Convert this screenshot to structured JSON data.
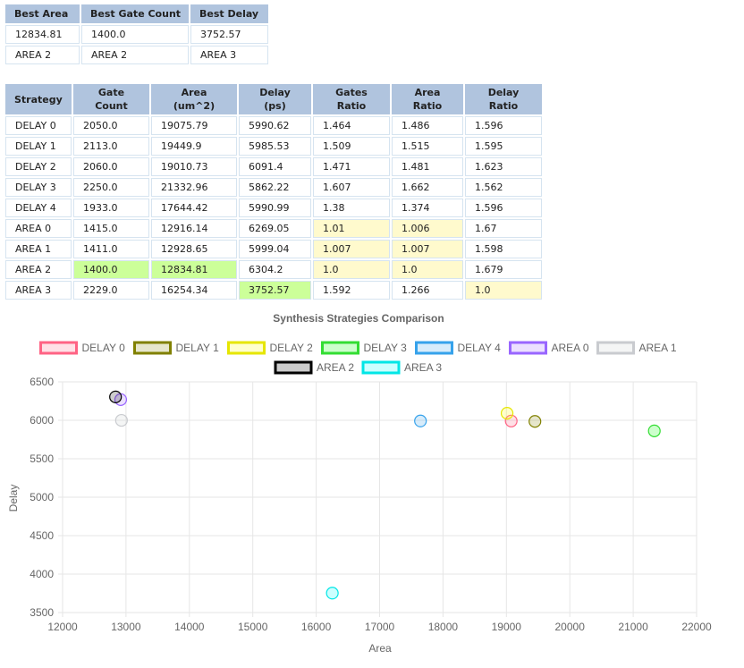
{
  "summary": {
    "headers": [
      "Best Area",
      "Best Gate Count",
      "Best Delay"
    ],
    "rows": [
      [
        "12834.81",
        "1400.0",
        "3752.57"
      ],
      [
        "AREA 2",
        "AREA 2",
        "AREA 3"
      ]
    ]
  },
  "strategies": {
    "headers": [
      "Strategy",
      "Gate\nCount",
      "Area\n(um^2)",
      "Delay\n(ps)",
      "Gates\nRatio",
      "Area\nRatio",
      "Delay\nRatio"
    ],
    "rows": [
      {
        "cells": [
          "DELAY 0",
          "2050.0",
          "19075.79",
          "5990.62",
          "1.464",
          "1.486",
          "1.596"
        ],
        "highlight": [
          "",
          "",
          "",
          "",
          "",
          "",
          ""
        ]
      },
      {
        "cells": [
          "DELAY 1",
          "2113.0",
          "19449.9",
          "5985.53",
          "1.509",
          "1.515",
          "1.595"
        ],
        "highlight": [
          "",
          "",
          "",
          "",
          "",
          "",
          ""
        ]
      },
      {
        "cells": [
          "DELAY 2",
          "2060.0",
          "19010.73",
          "6091.4",
          "1.471",
          "1.481",
          "1.623"
        ],
        "highlight": [
          "",
          "",
          "",
          "",
          "",
          "",
          ""
        ]
      },
      {
        "cells": [
          "DELAY 3",
          "2250.0",
          "21332.96",
          "5862.22",
          "1.607",
          "1.662",
          "1.562"
        ],
        "highlight": [
          "",
          "",
          "",
          "",
          "",
          "",
          ""
        ]
      },
      {
        "cells": [
          "DELAY 4",
          "1933.0",
          "17644.42",
          "5990.99",
          "1.38",
          "1.374",
          "1.596"
        ],
        "highlight": [
          "",
          "",
          "",
          "",
          "",
          "",
          ""
        ]
      },
      {
        "cells": [
          "AREA 0",
          "1415.0",
          "12916.14",
          "6269.05",
          "1.01",
          "1.006",
          "1.67"
        ],
        "highlight": [
          "",
          "",
          "",
          "",
          "yellow",
          "yellow",
          ""
        ]
      },
      {
        "cells": [
          "AREA 1",
          "1411.0",
          "12928.65",
          "5999.04",
          "1.007",
          "1.007",
          "1.598"
        ],
        "highlight": [
          "",
          "",
          "",
          "",
          "yellow",
          "yellow",
          ""
        ]
      },
      {
        "cells": [
          "AREA 2",
          "1400.0",
          "12834.81",
          "6304.2",
          "1.0",
          "1.0",
          "1.679"
        ],
        "highlight": [
          "",
          "green",
          "green",
          "",
          "yellow",
          "yellow",
          ""
        ]
      },
      {
        "cells": [
          "AREA 3",
          "2229.0",
          "16254.34",
          "3752.57",
          "1.592",
          "1.266",
          "1.0"
        ],
        "highlight": [
          "",
          "",
          "",
          "green",
          "",
          "",
          "yellow"
        ]
      }
    ]
  },
  "chart_data": {
    "type": "scatter",
    "title": "Synthesis Strategies Comparison",
    "xlabel": "Area",
    "ylabel": "Delay",
    "xlim": [
      12000,
      22000
    ],
    "ylim": [
      3500,
      6500
    ],
    "xticks": [
      12000,
      13000,
      14000,
      15000,
      16000,
      17000,
      18000,
      19000,
      20000,
      21000,
      22000
    ],
    "yticks": [
      3500,
      4000,
      4500,
      5000,
      5500,
      6000,
      6500
    ],
    "grid": true,
    "legend_position": "top",
    "series": [
      {
        "name": "DELAY 0",
        "color": "#ff6384",
        "fill": "rgba(255,99,132,0.2)",
        "x": 19075.79,
        "y": 5990.62
      },
      {
        "name": "DELAY 1",
        "color": "#808000",
        "fill": "rgba(128,128,0,0.2)",
        "x": 19449.9,
        "y": 5985.53
      },
      {
        "name": "DELAY 2",
        "color": "#e6e600",
        "fill": "rgba(255,255,0,0.2)",
        "x": 19010.73,
        "y": 6091.4
      },
      {
        "name": "DELAY 3",
        "color": "#33dd33",
        "fill": "rgba(0,255,0,0.2)",
        "x": 21332.96,
        "y": 5862.22
      },
      {
        "name": "DELAY 4",
        "color": "#36a2eb",
        "fill": "rgba(54,162,235,0.2)",
        "x": 17644.42,
        "y": 5990.99
      },
      {
        "name": "AREA 0",
        "color": "#9966ff",
        "fill": "rgba(153,102,255,0.2)",
        "x": 12916.14,
        "y": 6269.05
      },
      {
        "name": "AREA 1",
        "color": "#c9cbcf",
        "fill": "rgba(201,203,207,0.2)",
        "x": 12928.65,
        "y": 5999.04
      },
      {
        "name": "AREA 2",
        "color": "#000000",
        "fill": "rgba(0,0,0,0.2)",
        "x": 12834.81,
        "y": 6304.2
      },
      {
        "name": "AREA 3",
        "color": "#00e6e6",
        "fill": "rgba(0,255,255,0.2)",
        "x": 16254.34,
        "y": 3752.57
      }
    ]
  }
}
